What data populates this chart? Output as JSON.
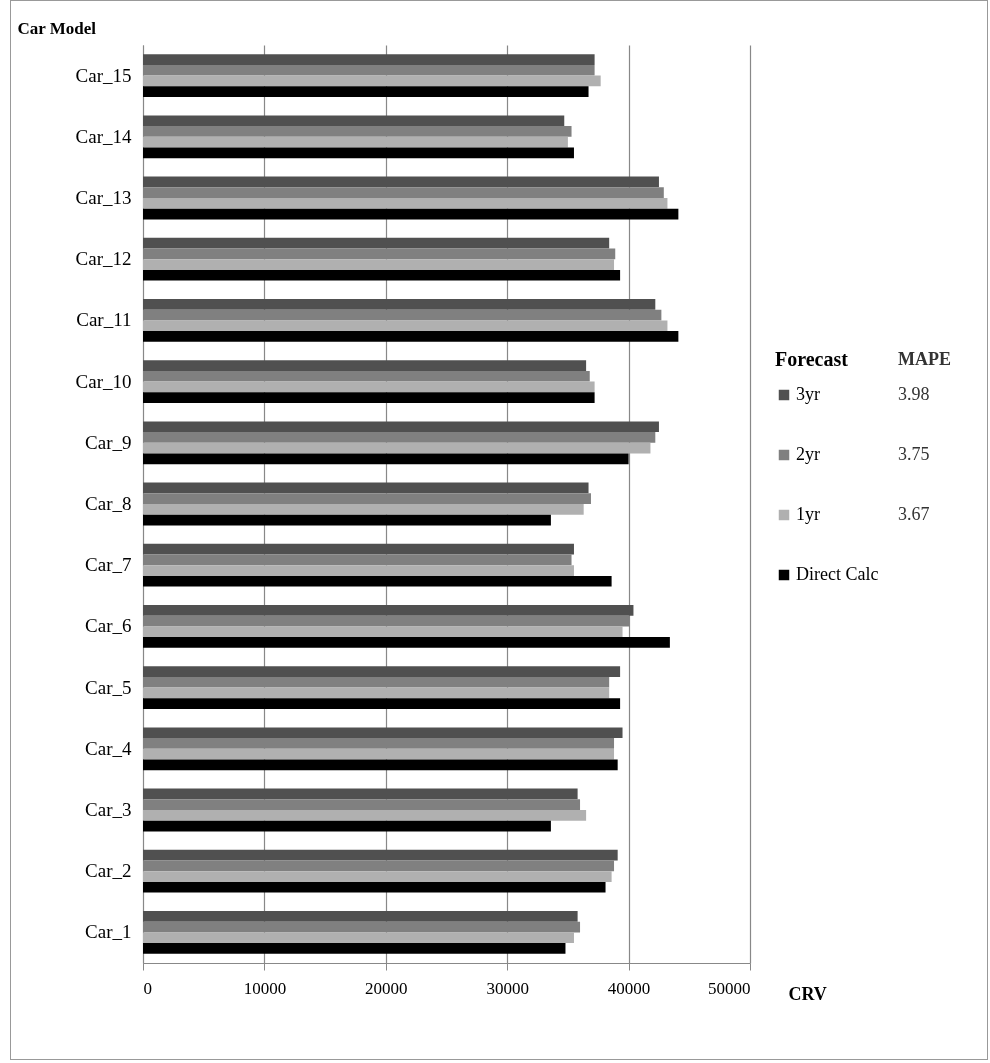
{
  "chart_data": {
    "type": "bar",
    "orientation": "horizontal",
    "xlabel": "CRV",
    "ylabel": "Car Model",
    "legend_title": "Forecast",
    "categories": [
      "Car_15",
      "Car_14",
      "Car_13",
      "Car_12",
      "Car_11",
      "Car_10",
      "Car_9",
      "Car_8",
      "Car_7",
      "Car_6",
      "Car_5",
      "Car_4",
      "Car_3",
      "Car_2",
      "Car_1"
    ],
    "series": [
      {
        "name": "3yr",
        "color": "#505050",
        "values": [
          37200,
          34700,
          42500,
          38400,
          42200,
          36500,
          42500,
          36700,
          35500,
          40400,
          39300,
          39500,
          35800,
          39100,
          35800
        ]
      },
      {
        "name": "2yr",
        "color": "#808080",
        "values": [
          37200,
          35300,
          42900,
          38900,
          42700,
          36800,
          42200,
          36900,
          35300,
          40100,
          38400,
          38800,
          36000,
          38800,
          36000
        ]
      },
      {
        "name": "1yr",
        "color": "#b0b0b0",
        "values": [
          37700,
          35000,
          43200,
          38800,
          43200,
          37200,
          41800,
          36300,
          35500,
          39500,
          38400,
          38800,
          36500,
          38600,
          35500
        ]
      },
      {
        "name": "Direct Calc",
        "color": "#000000",
        "values": [
          36700,
          35500,
          44100,
          39300,
          44100,
          37200,
          40000,
          33600,
          38600,
          43400,
          39300,
          39100,
          33600,
          38100,
          34800
        ]
      }
    ],
    "annotations": [
      "MAPE",
      "3.98",
      "3.75",
      "3.67"
    ],
    "xlim": [
      0,
      50000
    ],
    "xticks": [
      0,
      10000,
      20000,
      30000,
      40000,
      50000
    ],
    "grid": "x",
    "legend": "right"
  }
}
